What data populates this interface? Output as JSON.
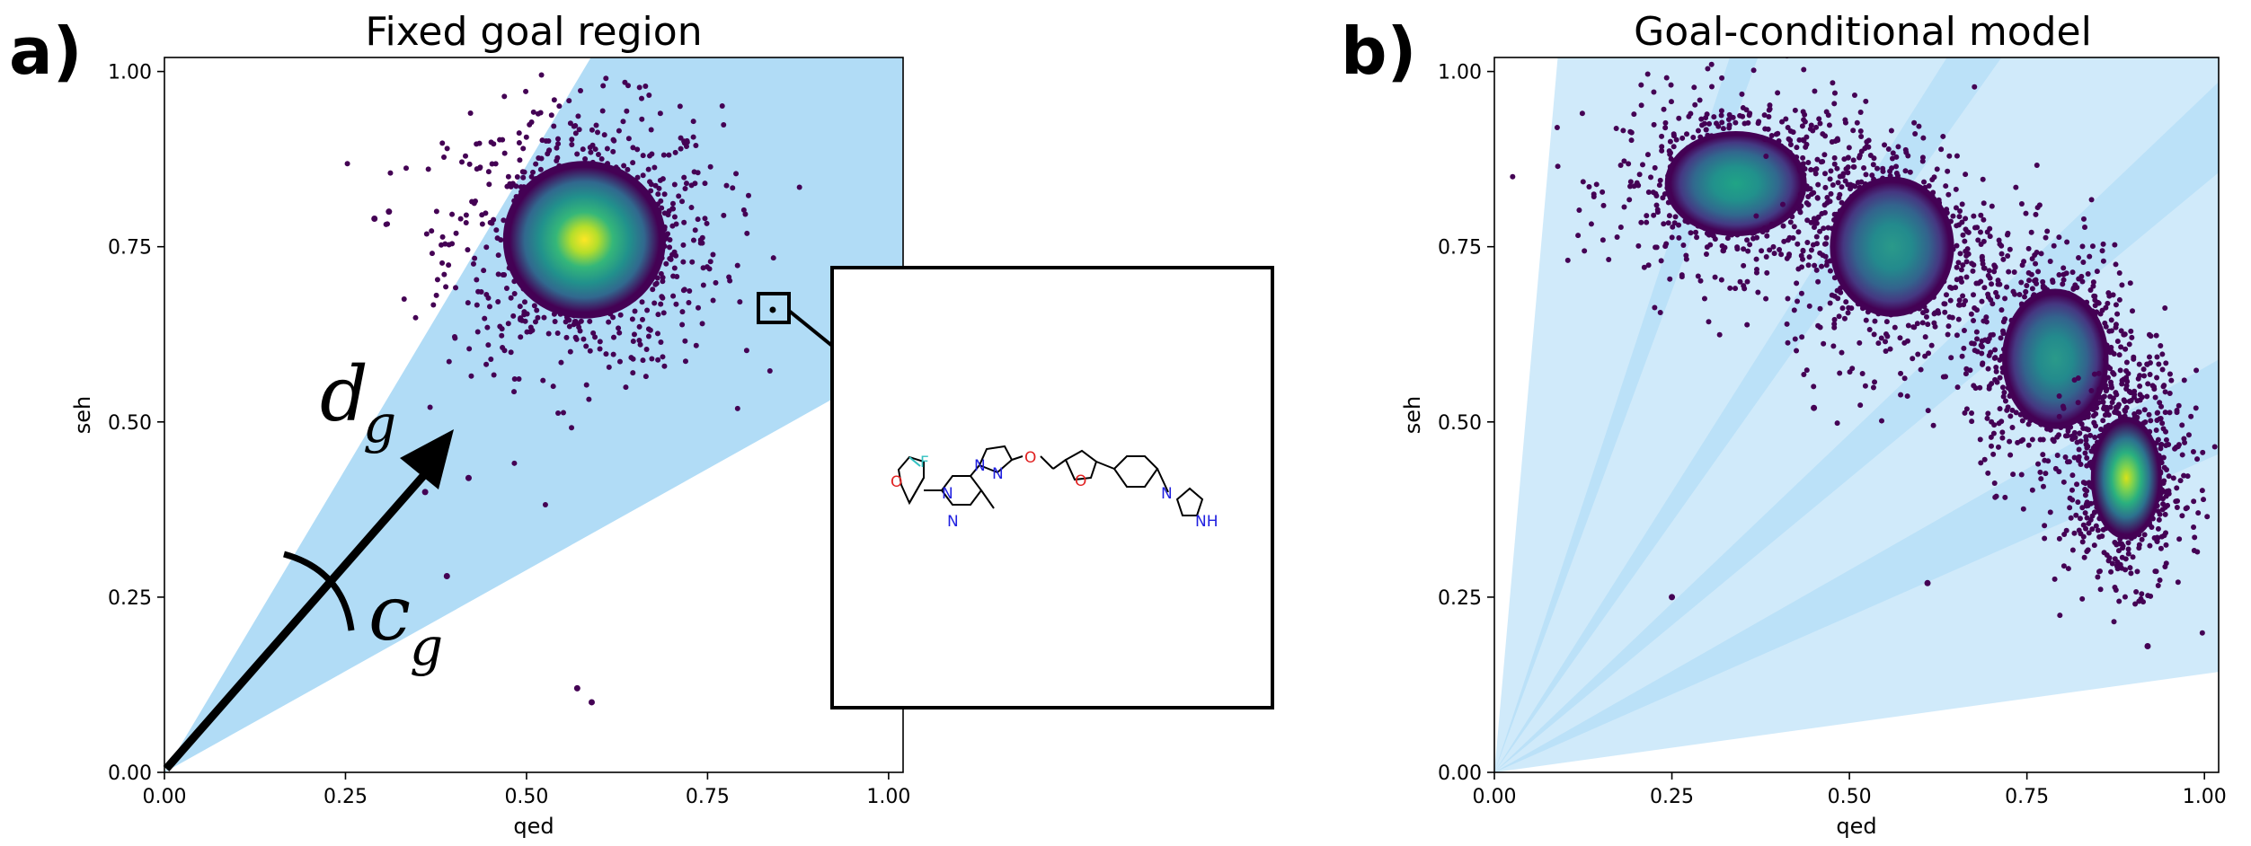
{
  "chart_data": [
    {
      "panel_label": "a)",
      "type": "scatter",
      "title": "Fixed goal region",
      "xlabel": "qed",
      "ylabel": "seh",
      "xlim": [
        0.0,
        1.02
      ],
      "ylim": [
        0.0,
        1.02
      ],
      "x_ticks": [
        "0.00",
        "0.25",
        "0.50",
        "0.75",
        "1.00"
      ],
      "y_ticks": [
        "0.00",
        "0.25",
        "0.50",
        "0.75",
        "1.00"
      ],
      "grid": false,
      "goal_region": {
        "direction_deg": 45,
        "half_width_deg": 15,
        "color": "#a9d8f5"
      },
      "clusters": [
        {
          "center": [
            0.58,
            0.76
          ],
          "spread": [
            0.09,
            0.09
          ]
        }
      ],
      "outliers": [
        [
          0.57,
          0.12
        ],
        [
          0.59,
          0.1
        ],
        [
          0.39,
          0.28
        ],
        [
          0.31,
          0.8
        ],
        [
          0.29,
          0.79
        ],
        [
          0.42,
          0.42
        ],
        [
          0.36,
          0.4
        ]
      ],
      "highlighted_point": [
        0.84,
        0.66
      ],
      "annotations": [
        {
          "text": "d",
          "sub": "g",
          "meaning": "goal direction arrow"
        },
        {
          "text": "c",
          "sub": "g",
          "meaning": "goal cone angle"
        }
      ],
      "inset": {
        "content": "molecule structure drawing"
      }
    },
    {
      "panel_label": "b)",
      "type": "scatter",
      "title": "Goal-conditional model",
      "xlabel": "qed",
      "ylabel": "seh",
      "xlim": [
        0.0,
        1.02
      ],
      "ylim": [
        0.0,
        1.02
      ],
      "x_ticks": [
        "0.00",
        "0.25",
        "0.50",
        "0.75",
        "1.00"
      ],
      "y_ticks": [
        "0.00",
        "0.25",
        "0.50",
        "0.75",
        "1.00"
      ],
      "grid": false,
      "goal_regions_deg": [
        [
          70,
          85
        ],
        [
          55,
          72
        ],
        [
          40,
          58
        ],
        [
          24,
          44
        ],
        [
          8,
          30
        ]
      ],
      "clusters": [
        {
          "center": [
            0.34,
            0.84
          ],
          "spread": [
            0.08,
            0.06
          ]
        },
        {
          "center": [
            0.56,
            0.75
          ],
          "spread": [
            0.07,
            0.08
          ]
        },
        {
          "center": [
            0.79,
            0.59
          ],
          "spread": [
            0.06,
            0.08
          ]
        },
        {
          "center": [
            0.89,
            0.42
          ],
          "spread": [
            0.04,
            0.07
          ]
        }
      ],
      "outliers": [
        [
          0.25,
          0.25
        ],
        [
          0.92,
          0.18
        ],
        [
          0.45,
          0.52
        ],
        [
          0.61,
          0.27
        ]
      ]
    }
  ],
  "molecule_atoms": {
    "O": "O",
    "F": "F",
    "N": "N",
    "NH": "NH"
  },
  "colors": {
    "region": "#a9d8f5",
    "viridis_low": "#440154",
    "viridis_high": "#fde725",
    "arrow": "#000000"
  }
}
